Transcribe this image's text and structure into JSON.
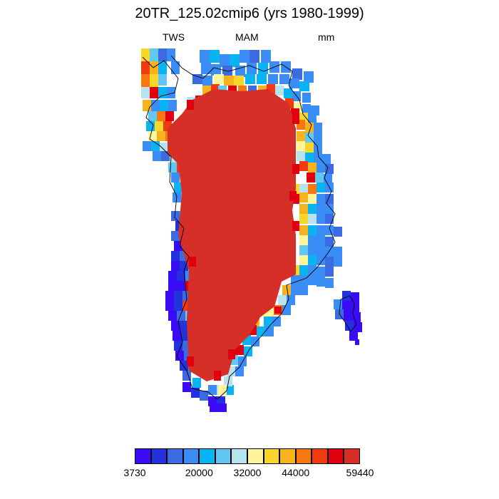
{
  "header": {
    "title": "20TR_125.02cmip6 (yrs 1980-1999)",
    "left_label": "TWS",
    "center_label": "MAM",
    "right_label": "mm"
  },
  "map": {
    "ice_sheet_color": "#d62f27",
    "coastline_color": "#000000"
  },
  "colorbar": {
    "colors": [
      "#3a0cf5",
      "#2233dd",
      "#3c6ae0",
      "#3a8df5",
      "#0ab4f2",
      "#60c8f2",
      "#b8e2ee",
      "#fff59a",
      "#f8d62a",
      "#f6b31b",
      "#f6780e",
      "#ef3a12",
      "#e0000e",
      "#d62f27"
    ],
    "tick_labels": [
      "3730",
      "20000",
      "32000",
      "44000",
      "59440"
    ]
  }
}
